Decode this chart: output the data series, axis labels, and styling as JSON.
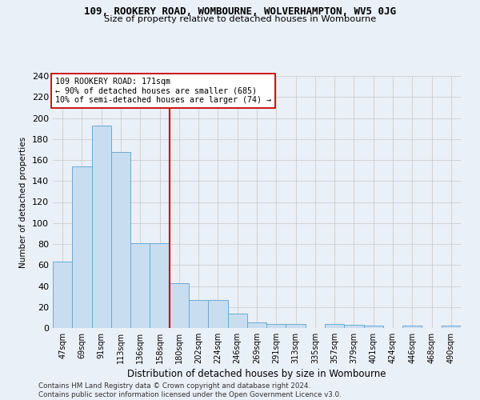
{
  "title_line1": "109, ROOKERY ROAD, WOMBOURNE, WOLVERHAMPTON, WV5 0JG",
  "title_line2": "Size of property relative to detached houses in Wombourne",
  "xlabel": "Distribution of detached houses by size in Wombourne",
  "ylabel": "Number of detached properties",
  "categories": [
    "47sqm",
    "69sqm",
    "91sqm",
    "113sqm",
    "136sqm",
    "158sqm",
    "180sqm",
    "202sqm",
    "224sqm",
    "246sqm",
    "269sqm",
    "291sqm",
    "313sqm",
    "335sqm",
    "357sqm",
    "379sqm",
    "401sqm",
    "424sqm",
    "446sqm",
    "468sqm",
    "490sqm"
  ],
  "values": [
    63,
    154,
    193,
    168,
    81,
    81,
    43,
    27,
    27,
    14,
    5,
    4,
    4,
    0,
    4,
    3,
    2,
    0,
    2,
    0,
    2
  ],
  "bar_color": "#c9ddf0",
  "bar_edge_color": "#6aaad4",
  "vline_x_index": 6,
  "vline_color": "#cc0000",
  "annotation_title": "109 ROOKERY ROAD: 171sqm",
  "annotation_line2": "← 90% of detached houses are smaller (685)",
  "annotation_line3": "10% of semi-detached houses are larger (74) →",
  "annotation_box_color": "#ffffff",
  "annotation_box_edge_color": "#cc0000",
  "grid_color": "#cccccc",
  "background_color": "#eaf0f7",
  "footer_line1": "Contains HM Land Registry data © Crown copyright and database right 2024.",
  "footer_line2": "Contains public sector information licensed under the Open Government Licence v3.0.",
  "ylim": [
    0,
    240
  ],
  "yticks": [
    0,
    20,
    40,
    60,
    80,
    100,
    120,
    140,
    160,
    180,
    200,
    220,
    240
  ]
}
